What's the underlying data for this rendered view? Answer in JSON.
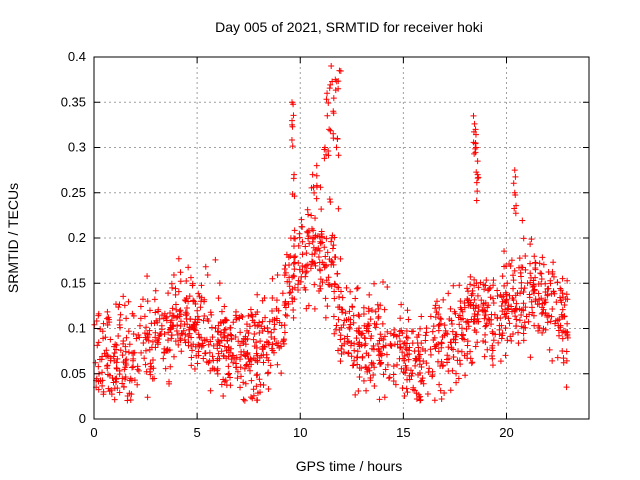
{
  "chart_data": {
    "type": "scatter",
    "title": "Day 005 of 2021, SRMTID for receiver hoki",
    "xlabel": "GPS time / hours",
    "ylabel": "SRMTID / TECUs",
    "xlim": [
      0,
      24
    ],
    "ylim": [
      0,
      0.4
    ],
    "xticks": [
      0,
      5,
      10,
      15,
      20
    ],
    "yticks": [
      0,
      0.05,
      0.1,
      0.15,
      0.2,
      0.25,
      0.3,
      0.35,
      0.4
    ],
    "xtick_labels": [
      "0",
      "5",
      "10",
      "15",
      "20"
    ],
    "ytick_labels": [
      "0",
      "0.05",
      "0.1",
      "0.15",
      "0.2",
      "0.25",
      "0.3",
      "0.35",
      "0.4"
    ],
    "grid": true,
    "marker": "+",
    "series_color": "#ff0000",
    "x_range_of_samples": [
      0,
      23
    ],
    "baseline_profile": {
      "hours": [
        0,
        1,
        2,
        3,
        4,
        5,
        6,
        7,
        8,
        9,
        9.5,
        10,
        10.5,
        11,
        11.5,
        12,
        12.5,
        13,
        14,
        15,
        16,
        17,
        18,
        18.5,
        19,
        20,
        21,
        22,
        23
      ],
      "median": [
        0.07,
        0.065,
        0.07,
        0.09,
        0.11,
        0.11,
        0.085,
        0.075,
        0.075,
        0.1,
        0.16,
        0.18,
        0.19,
        0.19,
        0.17,
        0.11,
        0.09,
        0.08,
        0.085,
        0.065,
        0.06,
        0.08,
        0.1,
        0.12,
        0.11,
        0.12,
        0.14,
        0.13,
        0.1
      ]
    },
    "spikes": [
      {
        "x": 9.6,
        "y": 0.35
      },
      {
        "x": 9.6,
        "y": 0.325
      },
      {
        "x": 11.5,
        "y": 0.39
      },
      {
        "x": 11.7,
        "y": 0.375
      },
      {
        "x": 11.9,
        "y": 0.385
      },
      {
        "x": 11.3,
        "y": 0.36
      },
      {
        "x": 11.6,
        "y": 0.34
      },
      {
        "x": 11.4,
        "y": 0.32
      },
      {
        "x": 11.8,
        "y": 0.31
      },
      {
        "x": 11.2,
        "y": 0.3
      },
      {
        "x": 18.4,
        "y": 0.335
      },
      {
        "x": 18.5,
        "y": 0.32
      },
      {
        "x": 18.5,
        "y": 0.305
      },
      {
        "x": 18.6,
        "y": 0.285
      },
      {
        "x": 18.6,
        "y": 0.27
      },
      {
        "x": 20.4,
        "y": 0.275
      },
      {
        "x": 20.4,
        "y": 0.25
      },
      {
        "x": 10.8,
        "y": 0.28
      },
      {
        "x": 10.6,
        "y": 0.27
      },
      {
        "x": 9.7,
        "y": 0.27
      }
    ]
  }
}
